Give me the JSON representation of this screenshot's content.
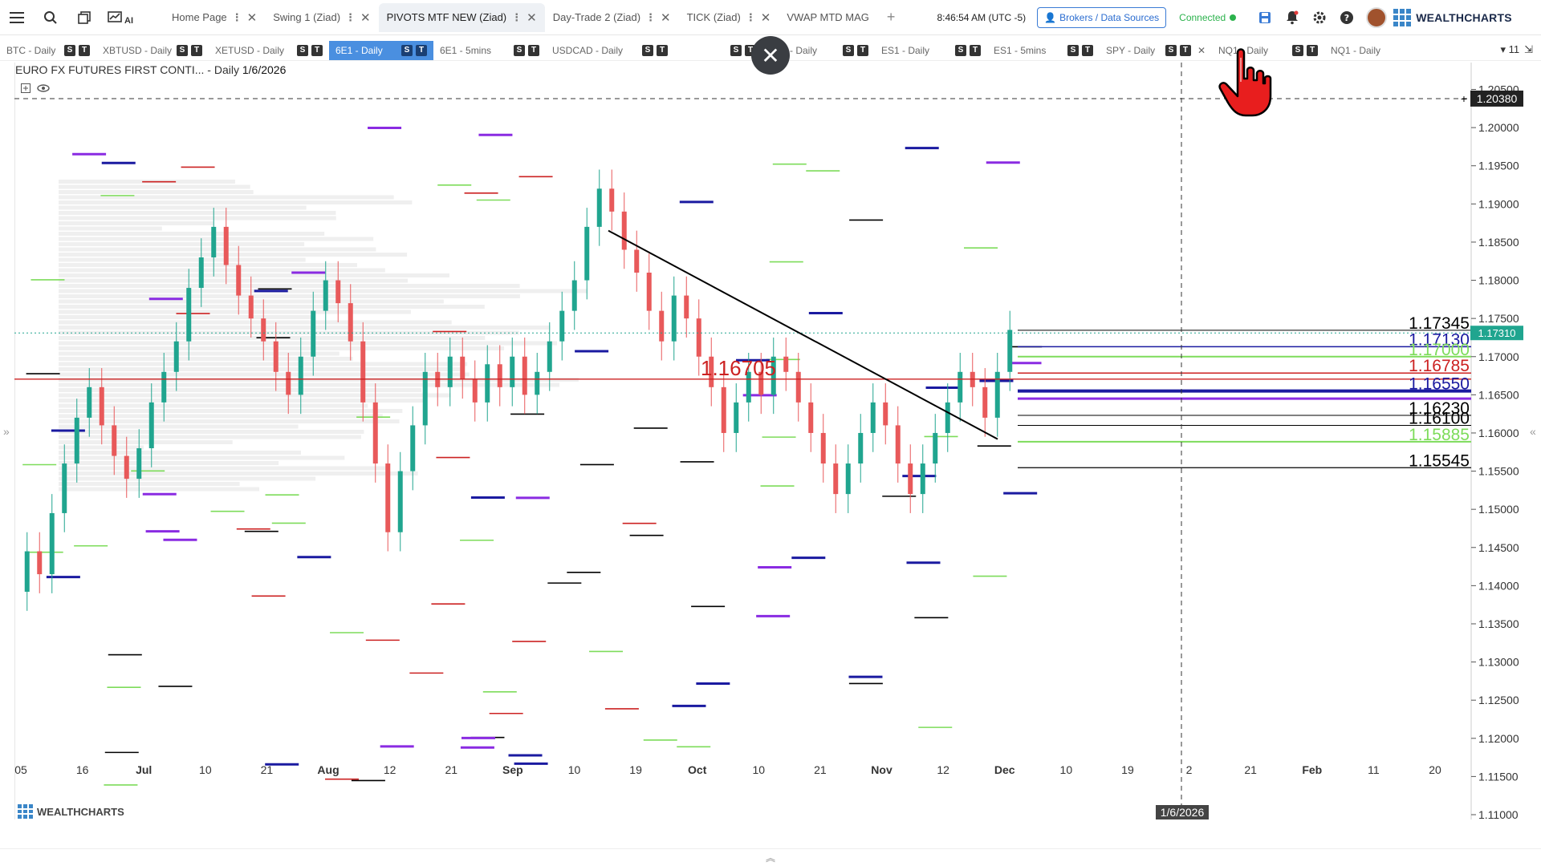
{
  "topbar": {
    "tabs": [
      {
        "label": "Home Page",
        "active": false
      },
      {
        "label": "Swing 1 (Ziad)",
        "active": false
      },
      {
        "label": "PIVOTS MTF NEW (Ziad)",
        "active": true
      },
      {
        "label": "Day-Trade 2 (Ziad)",
        "active": false
      },
      {
        "label": "TICK (Ziad)",
        "active": false
      },
      {
        "label": "VWAP MTD MAG",
        "active": false
      }
    ],
    "clock": "8:46:54 AM  (UTC -5)",
    "brokers_label": "Brokers / Data Sources",
    "connection_status": "Connected",
    "logo_text": "WEALTHCHARTS",
    "ai_label": "AI"
  },
  "symbols": [
    {
      "label": "BTC - Daily",
      "active": false
    },
    {
      "label": "XBTUSD - Daily",
      "active": false
    },
    {
      "label": "XETUSD - Daily",
      "active": false
    },
    {
      "label": "6E1 - Daily",
      "active": true
    },
    {
      "label": "6E1 - 5mins",
      "active": false
    },
    {
      "label": "USDCAD - Daily",
      "active": false
    },
    {
      "label": "",
      "active": false
    },
    {
      "label": "ES1 - Daily",
      "active": false
    },
    {
      "label": "ES1 - Daily",
      "active": false
    },
    {
      "label": "ES1 - 5mins",
      "active": false
    },
    {
      "label": "SPY - Daily",
      "active": false
    },
    {
      "label": "NQ1 - Daily",
      "active": false
    },
    {
      "label": "NQ1 - Daily",
      "active": false
    }
  ],
  "symbol_badge_s": "S",
  "symbol_badge_t": "T",
  "symbols_more_count": "11",
  "chart": {
    "title": "EURO FX FUTURES FIRST CONTI... - Daily",
    "date": "1/6/2026",
    "annotation": "1.16705",
    "crosshair_price": "1.20380",
    "crosshair_date": "1/6/2026",
    "current_price": "1.17310",
    "watermark": "WEALTHCHARTS"
  },
  "chart_data": {
    "type": "candlestick",
    "y_ticks": [
      "1.20500",
      "1.20000",
      "1.19500",
      "1.19000",
      "1.18500",
      "1.18000",
      "1.17500",
      "1.17000",
      "1.16500",
      "1.16000",
      "1.15500",
      "1.15000",
      "1.14500",
      "1.14000",
      "1.13500",
      "1.13000",
      "1.12500",
      "1.12000",
      "1.11500",
      "1.11000"
    ],
    "ylim": [
      1.11,
      1.206
    ],
    "x_ticks": [
      "05",
      "16",
      "Jul",
      "10",
      "21",
      "Aug",
      "12",
      "21",
      "Sep",
      "10",
      "19",
      "Oct",
      "10",
      "21",
      "Nov",
      "12",
      "Dec",
      "10",
      "19",
      "2",
      "21",
      "Feb",
      "11",
      "20"
    ],
    "x_bold": [
      "Jul",
      "Aug",
      "Sep",
      "Oct",
      "Nov",
      "Dec",
      "Feb"
    ],
    "level_labels": [
      {
        "text": "1.17345",
        "color": "#000000"
      },
      {
        "text": "1.17130",
        "color": "#1a1aa0"
      },
      {
        "text": "1.17000",
        "color": "#7ddc5a"
      },
      {
        "text": "1.16785",
        "color": "#cc2222"
      },
      {
        "text": "1.16550",
        "color": "#1a1aa0"
      },
      {
        "text": "1.16230",
        "color": "#000000"
      },
      {
        "text": "1.16100",
        "color": "#000000"
      },
      {
        "text": "1.15885",
        "color": "#7ddc5a"
      },
      {
        "text": "1.15545",
        "color": "#000000"
      }
    ],
    "candle_series": [
      {
        "o": 1.1392,
        "c": 1.1445
      },
      {
        "o": 1.1445,
        "c": 1.1415
      },
      {
        "o": 1.1415,
        "c": 1.1495
      },
      {
        "o": 1.1495,
        "c": 1.156
      },
      {
        "o": 1.156,
        "c": 1.162
      },
      {
        "o": 1.162,
        "c": 1.166
      },
      {
        "o": 1.166,
        "c": 1.161
      },
      {
        "o": 1.161,
        "c": 1.157
      },
      {
        "o": 1.157,
        "c": 1.154
      },
      {
        "o": 1.154,
        "c": 1.158
      },
      {
        "o": 1.158,
        "c": 1.164
      },
      {
        "o": 1.164,
        "c": 1.168
      },
      {
        "o": 1.168,
        "c": 1.172
      },
      {
        "o": 1.172,
        "c": 1.179
      },
      {
        "o": 1.179,
        "c": 1.183
      },
      {
        "o": 1.183,
        "c": 1.187
      },
      {
        "o": 1.187,
        "c": 1.182
      },
      {
        "o": 1.182,
        "c": 1.178
      },
      {
        "o": 1.178,
        "c": 1.175
      },
      {
        "o": 1.175,
        "c": 1.172
      },
      {
        "o": 1.172,
        "c": 1.168
      },
      {
        "o": 1.168,
        "c": 1.165
      },
      {
        "o": 1.165,
        "c": 1.17
      },
      {
        "o": 1.17,
        "c": 1.176
      },
      {
        "o": 1.176,
        "c": 1.18
      },
      {
        "o": 1.18,
        "c": 1.177
      },
      {
        "o": 1.177,
        "c": 1.172
      },
      {
        "o": 1.172,
        "c": 1.164
      },
      {
        "o": 1.164,
        "c": 1.156
      },
      {
        "o": 1.156,
        "c": 1.147
      },
      {
        "o": 1.147,
        "c": 1.155
      },
      {
        "o": 1.155,
        "c": 1.161
      },
      {
        "o": 1.161,
        "c": 1.168
      },
      {
        "o": 1.168,
        "c": 1.166
      },
      {
        "o": 1.166,
        "c": 1.17
      },
      {
        "o": 1.17,
        "c": 1.167
      },
      {
        "o": 1.167,
        "c": 1.164
      },
      {
        "o": 1.164,
        "c": 1.169
      },
      {
        "o": 1.169,
        "c": 1.166
      },
      {
        "o": 1.166,
        "c": 1.17
      },
      {
        "o": 1.17,
        "c": 1.165
      },
      {
        "o": 1.165,
        "c": 1.168
      },
      {
        "o": 1.168,
        "c": 1.172
      },
      {
        "o": 1.172,
        "c": 1.176
      },
      {
        "o": 1.176,
        "c": 1.18
      },
      {
        "o": 1.18,
        "c": 1.187
      },
      {
        "o": 1.187,
        "c": 1.192
      },
      {
        "o": 1.192,
        "c": 1.189
      },
      {
        "o": 1.189,
        "c": 1.184
      },
      {
        "o": 1.184,
        "c": 1.181
      },
      {
        "o": 1.181,
        "c": 1.176
      },
      {
        "o": 1.176,
        "c": 1.172
      },
      {
        "o": 1.172,
        "c": 1.178
      },
      {
        "o": 1.178,
        "c": 1.175
      },
      {
        "o": 1.175,
        "c": 1.17
      },
      {
        "o": 1.17,
        "c": 1.166
      },
      {
        "o": 1.166,
        "c": 1.16
      },
      {
        "o": 1.16,
        "c": 1.164
      },
      {
        "o": 1.164,
        "c": 1.168
      },
      {
        "o": 1.168,
        "c": 1.165
      },
      {
        "o": 1.165,
        "c": 1.17
      },
      {
        "o": 1.17,
        "c": 1.168
      },
      {
        "o": 1.168,
        "c": 1.164
      },
      {
        "o": 1.164,
        "c": 1.16
      },
      {
        "o": 1.16,
        "c": 1.156
      },
      {
        "o": 1.156,
        "c": 1.152
      },
      {
        "o": 1.152,
        "c": 1.156
      },
      {
        "o": 1.156,
        "c": 1.16
      },
      {
        "o": 1.16,
        "c": 1.164
      },
      {
        "o": 1.164,
        "c": 1.161
      },
      {
        "o": 1.161,
        "c": 1.156
      },
      {
        "o": 1.156,
        "c": 1.152
      },
      {
        "o": 1.152,
        "c": 1.156
      },
      {
        "o": 1.156,
        "c": 1.16
      },
      {
        "o": 1.16,
        "c": 1.164
      },
      {
        "o": 1.164,
        "c": 1.168
      },
      {
        "o": 1.168,
        "c": 1.166
      },
      {
        "o": 1.166,
        "c": 1.162
      },
      {
        "o": 1.162,
        "c": 1.168
      },
      {
        "o": 1.168,
        "c": 1.1735
      }
    ]
  }
}
